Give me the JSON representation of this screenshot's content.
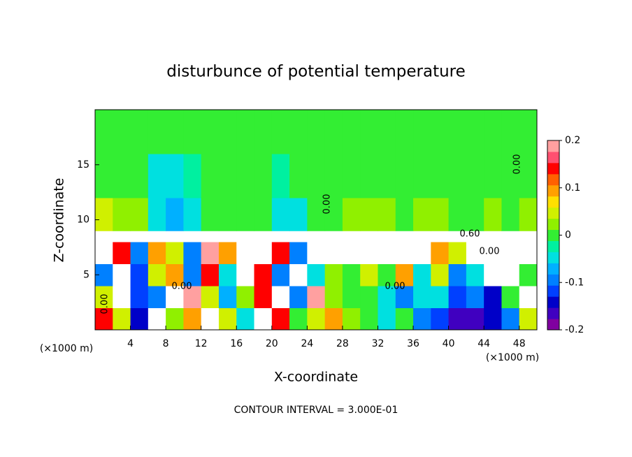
{
  "chart_data": {
    "type": "heatmap",
    "title": "disturbunce of potential temperature",
    "xlabel": "X-coordinate",
    "ylabel": "Z-coordinate",
    "x_unit": "(×1000 m)",
    "footer": "CONTOUR INTERVAL = 3.000E-01",
    "xlim": [
      0,
      50
    ],
    "ylim": [
      0,
      20
    ],
    "xticks": [
      4,
      8,
      12,
      16,
      20,
      24,
      28,
      32,
      36,
      40,
      44,
      48
    ],
    "yticks": [
      5,
      10,
      15
    ],
    "xbins": [
      0,
      2,
      4,
      6,
      8,
      10,
      12,
      14,
      16,
      18,
      20,
      22,
      24,
      26,
      28,
      30,
      32,
      34,
      36,
      38,
      40,
      42,
      44,
      46,
      48,
      50
    ],
    "zbins": [
      0,
      2,
      4,
      6,
      8,
      9,
      12,
      16,
      20
    ],
    "values": [
      [
        0.15,
        0.05,
        -0.15,
        0.3,
        0.02,
        0.1,
        0.3,
        0.05,
        -0.05,
        0.3,
        0.15,
        0.0,
        0.05,
        0.1,
        0.02,
        0.0,
        -0.05,
        0.0,
        -0.1,
        -0.12,
        -0.18,
        -0.17,
        -0.15,
        -0.1,
        0.05
      ],
      [
        0.05,
        0.3,
        -0.12,
        -0.1,
        0.3,
        0.2,
        0.05,
        -0.08,
        0.02,
        0.15,
        0.3,
        -0.1,
        0.2,
        0.02,
        0.0,
        0.0,
        -0.05,
        -0.1,
        -0.05,
        -0.05,
        -0.12,
        -0.1,
        -0.15,
        0.0,
        0.3
      ],
      [
        -0.1,
        0.3,
        -0.12,
        0.05,
        0.1,
        -0.1,
        0.15,
        -0.05,
        0.3,
        0.15,
        -0.1,
        0.3,
        -0.05,
        0.02,
        0.0,
        0.05,
        0.0,
        0.1,
        -0.05,
        0.05,
        -0.1,
        -0.05,
        0.3,
        0.3,
        0.0
      ],
      [
        0.3,
        0.15,
        -0.1,
        0.1,
        0.05,
        -0.1,
        0.2,
        0.1,
        0.3,
        0.3,
        0.15,
        -0.1,
        0.3,
        0.3,
        0.3,
        0.3,
        0.3,
        0.3,
        0.3,
        0.1,
        0.05,
        0.3,
        0.3,
        0.3,
        0.3
      ],
      [
        0.3,
        0.3,
        0.3,
        0.3,
        0.3,
        0.3,
        0.3,
        0.3,
        0.3,
        0.3,
        0.3,
        0.3,
        0.3,
        0.3,
        0.3,
        0.3,
        0.3,
        0.3,
        0.3,
        0.3,
        0.3,
        0.3,
        0.3,
        0.3,
        0.3
      ],
      [
        0.04,
        0.03,
        0.02,
        -0.06,
        -0.08,
        -0.05,
        0.0,
        0.01,
        0.0,
        0.01,
        -0.06,
        -0.05,
        0.0,
        0.01,
        0.02,
        0.02,
        0.02,
        0.01,
        0.02,
        0.02,
        0.0,
        0.01,
        0.02,
        0.0,
        0.02
      ],
      [
        0.01,
        0.01,
        0.0,
        -0.04,
        -0.05,
        -0.03,
        0.0,
        0.0,
        0.0,
        0.0,
        -0.02,
        -0.01,
        0.0,
        0.0,
        0.01,
        0.01,
        0.01,
        0.0,
        0.01,
        0.0,
        0.01,
        0.01,
        0.0,
        0.0,
        0.01
      ],
      [
        0.0,
        0.0,
        0.0,
        0.0,
        0.0,
        0.0,
        0.0,
        0.0,
        0.0,
        0.0,
        0.0,
        0.0,
        0.0,
        0.0,
        0.0,
        0.0,
        0.0,
        0.0,
        0.0,
        0.0,
        0.0,
        0.0,
        0.0,
        0.0,
        0.0
      ]
    ],
    "clim": [
      -0.2,
      0.2
    ],
    "colorbar_ticks": [
      -0.2,
      -0.1,
      0,
      0.1,
      0.2
    ],
    "colormap": [
      "#8000a0",
      "#4000c0",
      "#0000c8",
      "#0040ff",
      "#0080ff",
      "#00b0ff",
      "#00e0e0",
      "#00f0a0",
      "#33ee33",
      "#90f000",
      "#d0f000",
      "#ffe000",
      "#ffa000",
      "#ff6000",
      "#ff0000",
      "#ff5070",
      "#ffa0a0"
    ],
    "over_color": "#ffffff",
    "contour_labels": [
      "0.00",
      "0.00",
      "0.60",
      "0.00",
      "0.00",
      "0.00",
      "0.00"
    ]
  }
}
